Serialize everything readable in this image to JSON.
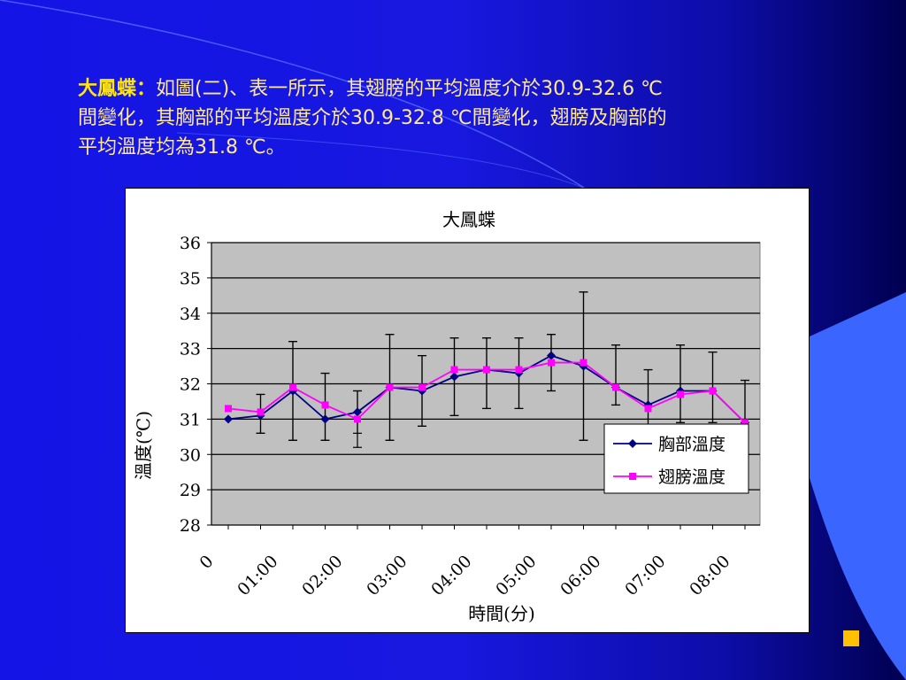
{
  "slide": {
    "lead": "大鳳蝶：",
    "text_line1": "如圖(二)、表一所示，其翅膀的平均溫度介於30.9-32.6 ℃",
    "text_line2": "間變化，其胸部的平均溫度介於30.9-32.8 ℃間變化，翅膀及胸部的",
    "text_line3": "平均溫度均為31.8 ℃。"
  },
  "colors": {
    "thorax": "#000080",
    "wing": "#ff00ff",
    "bullet": "#ffc000",
    "plot_bg": "#c0c0c0"
  },
  "chart_data": {
    "type": "line",
    "title": "大鳳蝶",
    "xlabel": "時間(分)",
    "ylabel": "溫度(℃)",
    "ylim": [
      28,
      36
    ],
    "yticks": [
      "28",
      "29",
      "30",
      "31",
      "32",
      "33",
      "34",
      "35",
      "36"
    ],
    "xtick_labels": [
      "0",
      "01:00",
      "02:00",
      "03:00",
      "04:00",
      "05:00",
      "06:00",
      "07:00",
      "08:00"
    ],
    "grid": true,
    "legend_position": "right",
    "series": [
      {
        "name": "胸部溫度",
        "marker": "diamond",
        "values": [
          31.0,
          31.1,
          31.8,
          31.0,
          31.2,
          31.9,
          31.8,
          32.2,
          32.4,
          32.3,
          32.8,
          32.5,
          31.9,
          31.4,
          31.8,
          31.8,
          30.9
        ],
        "err_lo": [
          31.0,
          30.6,
          30.4,
          30.4,
          30.6,
          30.4,
          30.8,
          31.1,
          31.3,
          31.3,
          31.8,
          30.4,
          31.4,
          30.8,
          30.9,
          30.9,
          30.9
        ],
        "err_hi": [
          31.0,
          31.7,
          33.2,
          32.3,
          31.8,
          33.4,
          32.8,
          33.3,
          33.3,
          33.3,
          33.4,
          34.6,
          33.1,
          32.4,
          33.1,
          32.9,
          32.1
        ]
      },
      {
        "name": "翅膀溫度",
        "marker": "square",
        "values": [
          31.3,
          31.2,
          31.9,
          31.4,
          31.0,
          31.9,
          31.9,
          32.4,
          32.4,
          32.4,
          32.6,
          32.6,
          31.9,
          31.3,
          31.7,
          31.8,
          30.9
        ],
        "err_lo": [
          31.3,
          30.6,
          30.4,
          30.4,
          30.2,
          30.4,
          30.8,
          31.1,
          31.3,
          31.3,
          31.8,
          30.4,
          31.4,
          30.8,
          30.9,
          30.9,
          30.9
        ],
        "err_hi": [
          31.3,
          31.7,
          33.2,
          32.3,
          31.8,
          33.4,
          32.8,
          33.3,
          33.3,
          33.3,
          33.4,
          34.6,
          33.1,
          32.4,
          33.1,
          32.9,
          32.1
        ]
      }
    ]
  }
}
